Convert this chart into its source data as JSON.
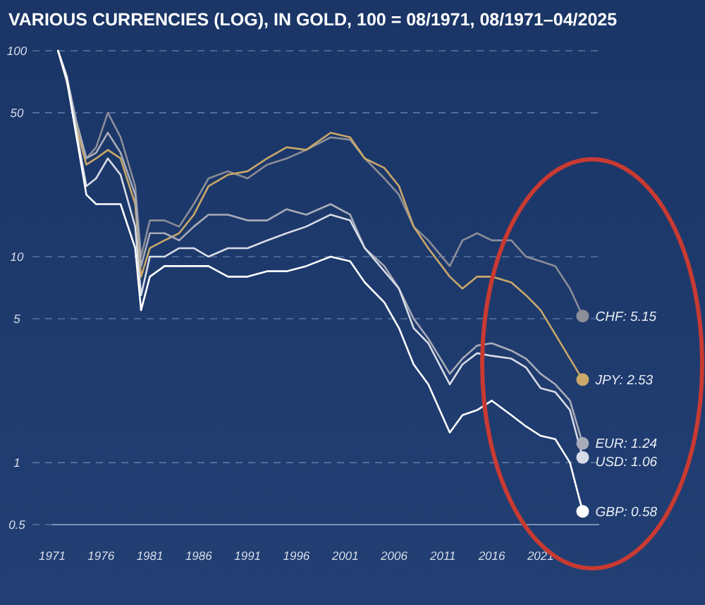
{
  "chart_data": {
    "type": "line",
    "title": "VARIOUS CURRENCIES (LOG), IN GOLD, 100 = 08/1971, 08/1971–04/2025",
    "x": [
      1971.6,
      1972.5,
      1973.5,
      1974.5,
      1975.5,
      1976.7,
      1978,
      1979.5,
      1980.1,
      1981,
      1982.5,
      1984,
      1985.5,
      1987,
      1989,
      1991,
      1993,
      1995,
      1997,
      1999.5,
      2001.5,
      2003,
      2005,
      2006.5,
      2008,
      2009.5,
      2011.7,
      2013,
      2014.5,
      2016,
      2018,
      2019.5,
      2021,
      2022.5,
      2024,
      2025.3
    ],
    "series": [
      {
        "color": "#8c8e98",
        "values": [
          100,
          70,
          45,
          30,
          34,
          50,
          38,
          22,
          10,
          15,
          15,
          14,
          18,
          24,
          26,
          24,
          28,
          30,
          33,
          38,
          37,
          30,
          24,
          20,
          14,
          12,
          9,
          12,
          13,
          12,
          12,
          10,
          9.5,
          9,
          7,
          5.15
        ],
        "value_labels": [
          null,
          null,
          null,
          null,
          null,
          null,
          null,
          null,
          null,
          null,
          null,
          null,
          null,
          null,
          null,
          null,
          null,
          null,
          null,
          null,
          null,
          null,
          null,
          null,
          null,
          null,
          null,
          null,
          null,
          null,
          null,
          null,
          null,
          null,
          null,
          "CHF: 5.15"
        ]
      },
      {
        "color": "#c9a86a",
        "values": [
          100,
          72,
          42,
          28,
          30,
          33,
          30,
          18,
          8,
          11,
          12,
          13,
          16,
          22,
          25,
          26,
          30,
          34,
          33,
          40,
          38,
          30,
          27,
          22,
          14,
          11,
          8,
          7,
          8,
          8,
          7.5,
          6.5,
          5.5,
          4.2,
          3.2,
          2.53
        ],
        "value_labels": [
          null,
          null,
          null,
          null,
          null,
          null,
          null,
          null,
          null,
          null,
          null,
          null,
          null,
          null,
          null,
          null,
          null,
          null,
          null,
          null,
          null,
          null,
          null,
          null,
          null,
          null,
          null,
          null,
          null,
          null,
          null,
          null,
          null,
          null,
          null,
          "JPY: 2.53"
        ]
      },
      {
        "color": "#a8acb8",
        "values": [
          100,
          75,
          45,
          30,
          32,
          40,
          32,
          20,
          9,
          13,
          13,
          12,
          14,
          16,
          16,
          15,
          15,
          17,
          16,
          18,
          16,
          11,
          9,
          7,
          5,
          4,
          2.7,
          3.2,
          3.7,
          3.8,
          3.5,
          3.2,
          2.7,
          2.4,
          2.0,
          1.24
        ],
        "value_labels": [
          null,
          null,
          null,
          null,
          null,
          null,
          null,
          null,
          null,
          null,
          null,
          null,
          null,
          null,
          null,
          null,
          null,
          null,
          null,
          null,
          null,
          null,
          null,
          null,
          null,
          null,
          null,
          null,
          null,
          null,
          null,
          null,
          null,
          null,
          null,
          "EUR: 1.24"
        ]
      },
      {
        "color": "#d8dce6",
        "values": [
          100,
          75,
          40,
          22,
          24,
          30,
          25,
          14,
          6.5,
          10,
          10,
          11,
          11,
          10,
          11,
          11,
          12,
          13,
          14,
          16,
          15,
          11,
          8.5,
          7,
          4.5,
          3.8,
          2.4,
          3.0,
          3.4,
          3.3,
          3.2,
          2.9,
          2.3,
          2.2,
          1.8,
          1.06
        ],
        "value_labels": [
          null,
          null,
          null,
          null,
          null,
          null,
          null,
          null,
          null,
          null,
          null,
          null,
          null,
          null,
          null,
          null,
          null,
          null,
          null,
          null,
          null,
          null,
          null,
          null,
          null,
          null,
          null,
          null,
          null,
          null,
          null,
          null,
          null,
          null,
          null,
          "USD: 1.06"
        ]
      },
      {
        "color": "#ffffff",
        "values": [
          100,
          72,
          38,
          20,
          18,
          18,
          18,
          11,
          5.5,
          8,
          9,
          9,
          9,
          9,
          8,
          8,
          8.5,
          8.5,
          9,
          10,
          9.5,
          7.5,
          6,
          4.5,
          3,
          2.4,
          1.4,
          1.7,
          1.8,
          2.0,
          1.7,
          1.5,
          1.35,
          1.3,
          1.0,
          0.58
        ],
        "value_labels": [
          null,
          null,
          null,
          null,
          null,
          null,
          null,
          null,
          null,
          null,
          null,
          null,
          null,
          null,
          null,
          null,
          null,
          null,
          null,
          null,
          null,
          null,
          null,
          null,
          null,
          null,
          null,
          null,
          null,
          null,
          null,
          null,
          null,
          null,
          null,
          "GBP: 0.58"
        ]
      }
    ],
    "log": true,
    "xlim": [
      1971,
      2027
    ],
    "xticks": [
      1971,
      1976,
      1981,
      1986,
      1991,
      1996,
      2001,
      2006,
      2011,
      2016,
      2021
    ],
    "ylim": [
      0.5,
      100
    ],
    "yticks": [
      100,
      50,
      10,
      5,
      1,
      0.5
    ],
    "grid": "y",
    "marker": "none",
    "line_style": "solid"
  }
}
